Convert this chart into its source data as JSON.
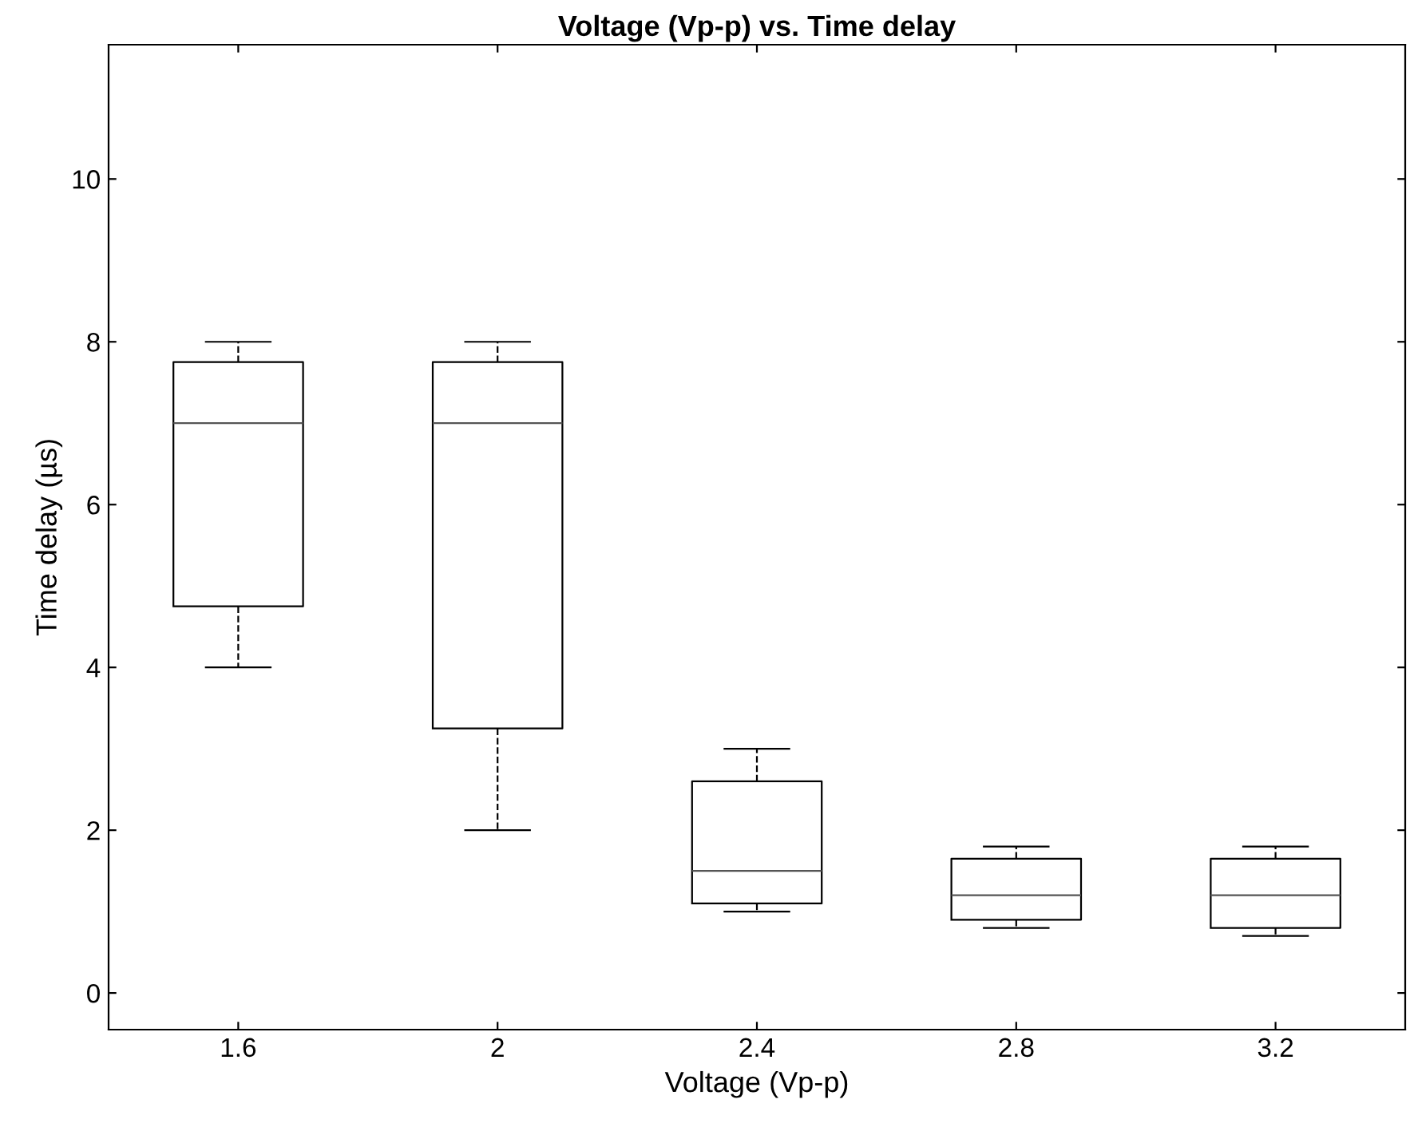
{
  "chart_data": {
    "type": "box",
    "title": "Voltage (Vp-p) vs. Time delay",
    "xlabel": "Voltage (Vp-p)",
    "ylabel": "Time delay (µs)",
    "categories": [
      "1.6",
      "2",
      "2.4",
      "2.8",
      "3.2"
    ],
    "boxes": [
      {
        "low": 4,
        "q1": 4.75,
        "median": 7,
        "q3": 7.75,
        "high": 8
      },
      {
        "low": 2,
        "q1": 3.25,
        "median": 7,
        "q3": 7.75,
        "high": 8
      },
      {
        "low": 1,
        "q1": 1.1,
        "median": 1.5,
        "q3": 2.6,
        "high": 3
      },
      {
        "low": 0.8,
        "q1": 0.9,
        "median": 1.2,
        "q3": 1.65,
        "high": 1.8
      },
      {
        "low": 0.7,
        "q1": 0.8,
        "median": 1.2,
        "q3": 1.65,
        "high": 1.8
      }
    ],
    "ylim": [
      -0.45,
      11.65
    ],
    "yticks": [
      0,
      2,
      4,
      6,
      8,
      10
    ],
    "grid": false,
    "line_style": "dashed"
  }
}
